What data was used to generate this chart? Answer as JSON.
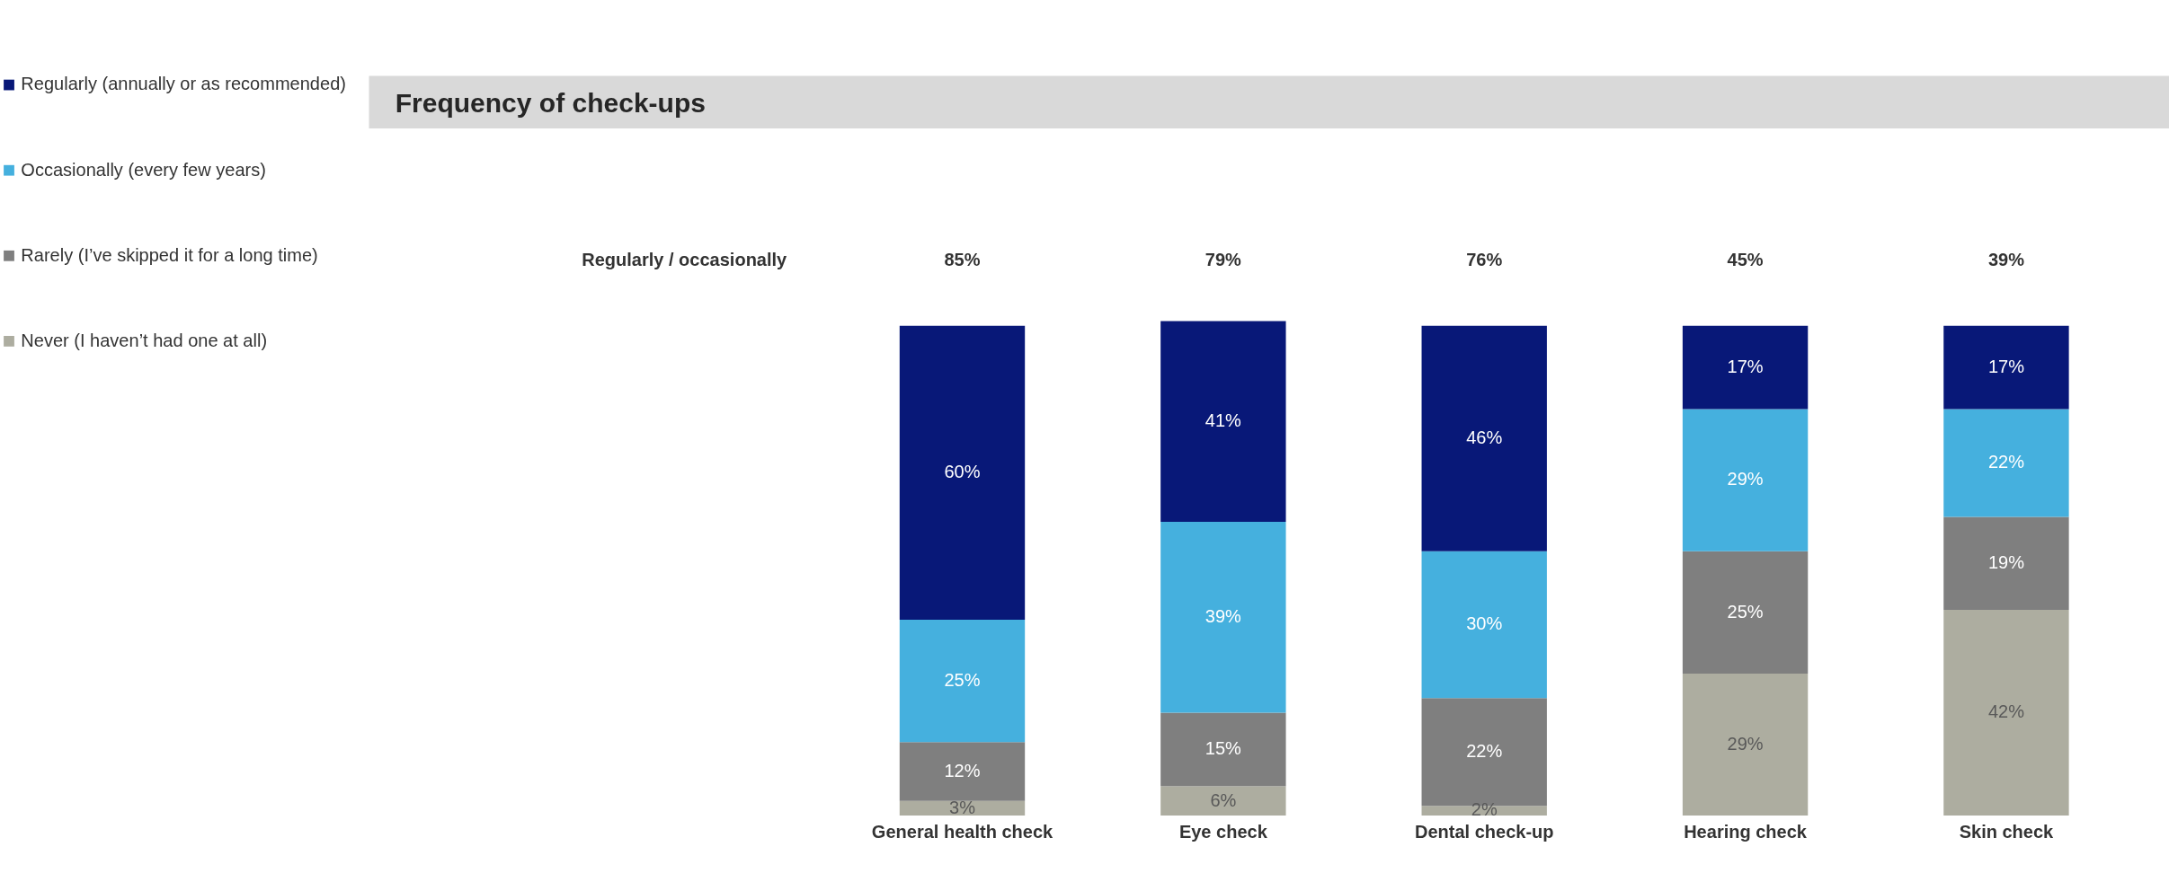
{
  "chart_data": {
    "type": "bar",
    "title": "Frequency of check-ups",
    "stacked": true,
    "legend": "left",
    "grid": false,
    "categories": [
      "General health check",
      "Eye check",
      "Dental check-up",
      "Hearing check",
      "Skin check"
    ],
    "series": [
      {
        "name": "Never (I haven’t had one at all)",
        "color": "#adada0",
        "values": [
          3,
          6,
          2,
          29,
          42
        ],
        "value_labels": [
          "3%",
          "6%",
          "2%",
          "29%",
          "42%"
        ]
      },
      {
        "name": "Rarely (I’ve skipped it for a long time)",
        "color": "#7f7f7f",
        "values": [
          12,
          15,
          22,
          25,
          19
        ],
        "value_labels": [
          "12%",
          "15%",
          "22%",
          "25%",
          "19%"
        ]
      },
      {
        "name": "Occasionally (every few years)",
        "color": "#45b0de",
        "values": [
          25,
          39,
          30,
          29,
          22
        ],
        "value_labels": [
          "25%",
          "39%",
          "30%",
          "29%",
          "22%"
        ]
      },
      {
        "name": "Regularly (annually or as recommended)",
        "color": "#081878",
        "values": [
          60,
          41,
          46,
          17,
          17
        ],
        "value_labels": [
          "60%",
          "41%",
          "46%",
          "17%",
          "17%"
        ]
      }
    ],
    "annotations": [
      "Regularly / occasionally",
      "85%",
      "79%",
      "76%",
      "45%",
      "39%"
    ]
  }
}
